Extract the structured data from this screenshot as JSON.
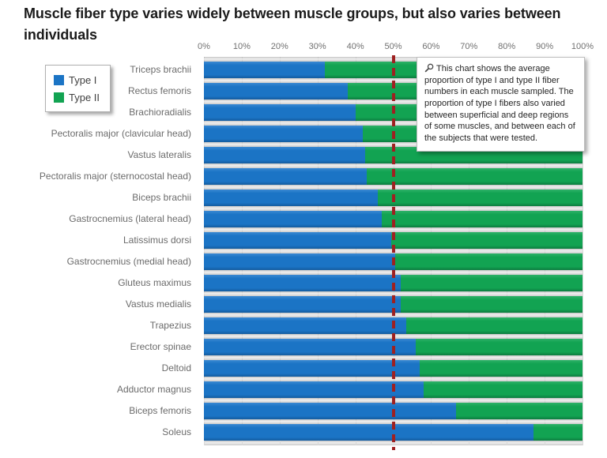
{
  "title": "Muscle fiber type varies widely between muscle groups, but also varies between individuals",
  "legend": {
    "items": [
      {
        "label": "Type I",
        "color": "#1b74c5"
      },
      {
        "label": "Type II",
        "color": "#12a352"
      }
    ]
  },
  "annotation": {
    "icon": "magnifier-icon",
    "text": "This chart shows the average proportion of type I and type II fiber numbers in each muscle sampled. The proportion of type I fibers also varied between superficial and deep regions of some muscles, and between each of the subjects that were tested."
  },
  "chart_data": {
    "type": "bar",
    "orientation": "horizontal",
    "stacked": true,
    "title": "Muscle fiber type varies widely between muscle groups, but also varies between individuals",
    "categories": [
      "Triceps brachii",
      "Rectus femoris",
      "Brachioradialis",
      "Pectoralis major (clavicular head)",
      "Vastus lateralis",
      "Pectoralis major (sternocostal head)",
      "Biceps brachii",
      "Gastrocnemius (lateral head)",
      "Latissimus dorsi",
      "Gastrocnemius (medial head)",
      "Gluteus maximus",
      "Vastus medialis",
      "Trapezius",
      "Erector spinae",
      "Deltoid",
      "Adductor magnus",
      "Biceps femoris",
      "Soleus"
    ],
    "series": [
      {
        "name": "Type I",
        "color": "#1b74c5",
        "values": [
          32,
          38,
          40,
          42,
          42.5,
          43,
          46,
          47,
          49.5,
          50.5,
          52,
          52,
          53.5,
          56,
          57,
          58,
          66.5,
          87
        ]
      },
      {
        "name": "Type II",
        "color": "#12a352",
        "values": [
          68,
          62,
          60,
          58,
          57.5,
          57,
          54,
          53,
          50.5,
          49.5,
          48,
          48,
          46.5,
          44,
          43,
          42,
          33.5,
          13
        ]
      }
    ],
    "x_axis": {
      "min": 0,
      "max": 100,
      "ticks": [
        "0%",
        "10%",
        "20%",
        "30%",
        "40%",
        "50%",
        "60%",
        "70%",
        "80%",
        "90%",
        "100%"
      ]
    },
    "reference_line": {
      "value": 50,
      "style": "dashed",
      "color": "#9e2121"
    },
    "legend_position": "top-left",
    "grid": "vertical"
  }
}
